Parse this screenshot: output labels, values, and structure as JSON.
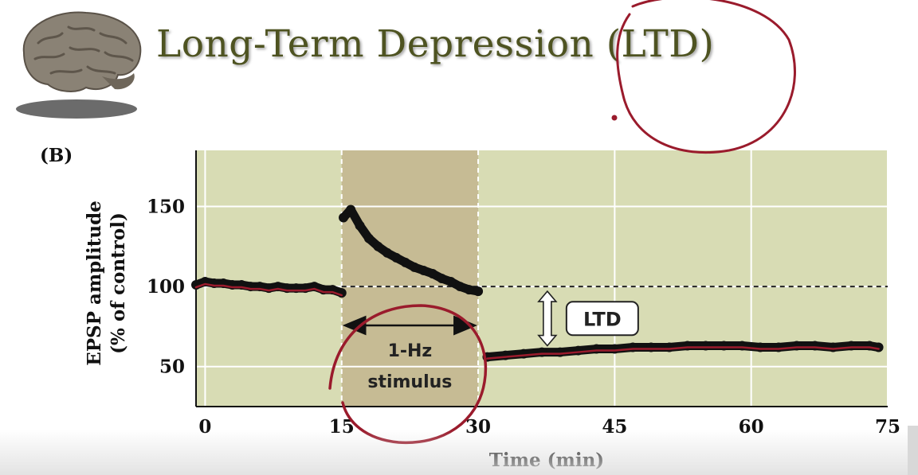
{
  "slide": {
    "title": "Long-Term Depression (LTD)",
    "panel_label": "(B)",
    "icon": "brain-icon",
    "colors": {
      "title": "#4e5321",
      "plot_background": "#d8dcb4",
      "stimulus_shading": "#c6bb94",
      "trace": "#111111",
      "annotation_ink": "#9a1b2c"
    }
  },
  "chart_data": {
    "type": "scatter",
    "xlabel": "Time (min)",
    "ylabel": "EPSP amplitude",
    "ylabel_sub": "(% of control)",
    "xlim": [
      -1,
      75
    ],
    "ylim": [
      25,
      185
    ],
    "xticks": [
      0,
      15,
      30,
      45,
      60,
      75
    ],
    "yticks": [
      50,
      100,
      150
    ],
    "grid": true,
    "stimulus": {
      "start": 15,
      "end": 30,
      "label_line1": "1-Hz",
      "label_line2": "stimulus"
    },
    "baseline": 100,
    "ltd_label": "LTD",
    "series": [
      {
        "x": [
          -1,
          0,
          1,
          2,
          3,
          4,
          5,
          6,
          7,
          8,
          9,
          10,
          11,
          12,
          13,
          14,
          15
        ],
        "y": [
          101,
          103,
          102,
          102,
          101,
          101,
          100,
          100,
          99,
          100,
          99,
          99,
          99,
          100,
          98,
          98,
          96
        ]
      },
      {
        "x": [
          15.2,
          16,
          17,
          18,
          19,
          20,
          21,
          22,
          23,
          24,
          25,
          26,
          27,
          28,
          29,
          30
        ],
        "y": [
          143,
          148,
          138,
          130,
          125,
          121,
          118,
          115,
          112,
          110,
          108,
          105,
          103,
          100,
          98,
          97
        ]
      },
      {
        "x": [
          31,
          33,
          35,
          37,
          39,
          41,
          43,
          45,
          47,
          49,
          51,
          53,
          55,
          57,
          59,
          61,
          63,
          65,
          67,
          69,
          71,
          73,
          74
        ],
        "y": [
          56,
          57,
          58,
          59,
          59,
          60,
          61,
          61,
          62,
          62,
          62,
          63,
          63,
          63,
          63,
          62,
          62,
          63,
          63,
          62,
          63,
          63,
          62
        ]
      }
    ]
  }
}
